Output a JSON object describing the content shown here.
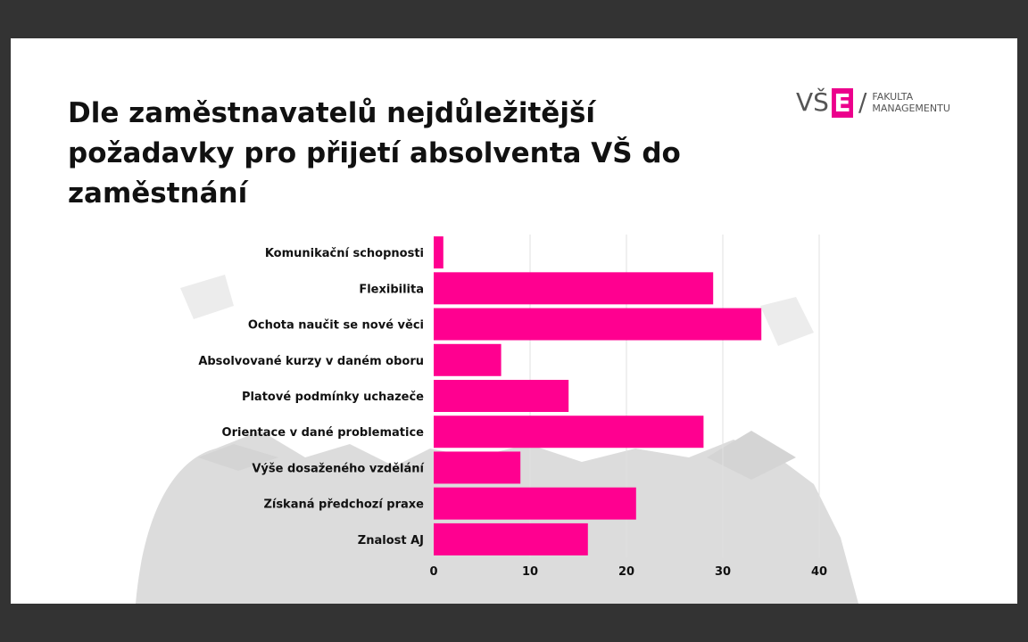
{
  "title": "Dle zaměstnavatelů nejdůležitější požadavky pro přijetí absolventa VŠ do zaměstnání",
  "logo": {
    "mark": "VŠE",
    "line1": "FAKULTA",
    "line2": "MANAGEMENTU",
    "accent": "#ec008c"
  },
  "chart_data": {
    "type": "bar",
    "orientation": "horizontal",
    "categories": [
      "Komunikační schopnosti",
      "Flexibilita",
      "Ochota naučit se nové věci",
      "Absolvované kurzy v daném oboru",
      "Platové podmínky uchazeče",
      "Orientace v dané problematice",
      "Výše dosaženého vzdělání",
      "Získaná předchozí praxe",
      "Znalost AJ"
    ],
    "values": [
      1,
      29,
      34,
      7,
      14,
      28,
      9,
      21,
      16
    ],
    "xlim": [
      0,
      44
    ],
    "xticks": [
      "0",
      "10",
      "20",
      "30",
      "40"
    ],
    "grid": true,
    "color": "#ff0090"
  }
}
